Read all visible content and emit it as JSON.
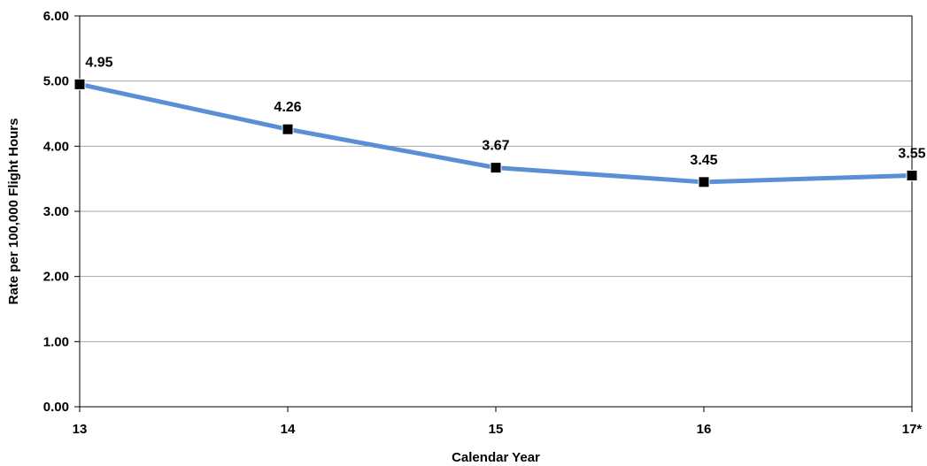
{
  "chart_data": {
    "type": "line",
    "title": "",
    "xlabel": "Calendar Year",
    "ylabel": "Rate per 100,000 Flight Hours",
    "categories": [
      "13",
      "14",
      "15",
      "16",
      "17*"
    ],
    "series": [
      {
        "values": [
          4.95,
          4.26,
          3.67,
          3.45,
          3.55
        ],
        "data_labels": [
          "4.95",
          "4.26",
          "3.67",
          "3.45",
          "3.55"
        ],
        "color": "#5a8fd6",
        "marker": "square",
        "marker_color": "#000000"
      }
    ],
    "ylim": [
      0,
      6
    ],
    "yticks": [
      0,
      1,
      2,
      3,
      4,
      5,
      6
    ],
    "ytick_labels": [
      "0.00",
      "1.00",
      "2.00",
      "3.00",
      "4.00",
      "5.00",
      "6.00"
    ],
    "grid": true,
    "legend": "none"
  }
}
